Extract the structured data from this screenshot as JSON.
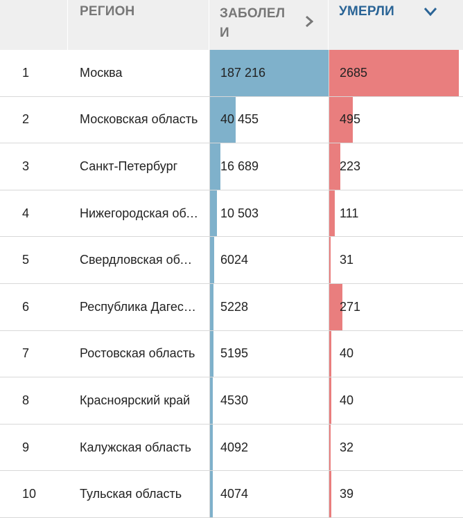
{
  "header": {
    "rank": "",
    "region": "РЕГИОН",
    "cases": "ЗАБОЛЕЛИ",
    "deaths": "УМЕРЛИ",
    "cases_sort_icon": "chevron-right-icon",
    "deaths_sort_icon": "chevron-down-icon"
  },
  "colors": {
    "cases_bar": "#7fb1cb",
    "deaths_bar": "#e97e7e",
    "active_header": "#2a6496"
  },
  "rows": [
    {
      "rank": "1",
      "region": "Москва",
      "cases": "187 216",
      "cases_num": 187216,
      "deaths": "2685",
      "deaths_num": 2685
    },
    {
      "rank": "2",
      "region": "Московская область",
      "cases": "40 455",
      "cases_num": 40455,
      "deaths": "495",
      "deaths_num": 495
    },
    {
      "rank": "3",
      "region": "Санкт-Петербург",
      "cases": "16 689",
      "cases_num": 16689,
      "deaths": "223",
      "deaths_num": 223
    },
    {
      "rank": "4",
      "region": "Нижегородская область",
      "cases": "10 503",
      "cases_num": 10503,
      "deaths": "111",
      "deaths_num": 111
    },
    {
      "rank": "5",
      "region": "Свердловская область",
      "cases": "6024",
      "cases_num": 6024,
      "deaths": "31",
      "deaths_num": 31
    },
    {
      "rank": "6",
      "region": "Республика Дагестан",
      "cases": "5228",
      "cases_num": 5228,
      "deaths": "271",
      "deaths_num": 271
    },
    {
      "rank": "7",
      "region": "Ростовская область",
      "cases": "5195",
      "cases_num": 5195,
      "deaths": "40",
      "deaths_num": 40
    },
    {
      "rank": "8",
      "region": "Красноярский край",
      "cases": "4530",
      "cases_num": 4530,
      "deaths": "40",
      "deaths_num": 40
    },
    {
      "rank": "9",
      "region": "Калужская область",
      "cases": "4092",
      "cases_num": 4092,
      "deaths": "32",
      "deaths_num": 32
    },
    {
      "rank": "10",
      "region": "Тульская область",
      "cases": "4074",
      "cases_num": 4074,
      "deaths": "39",
      "deaths_num": 39
    }
  ]
}
